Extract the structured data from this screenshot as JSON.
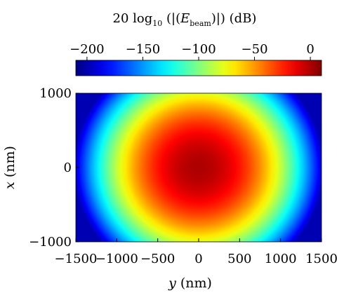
{
  "chart_data": {
    "type": "heatmap",
    "title_parts": {
      "prefix": "20 log",
      "log_subscript": "10",
      "open": " (|(",
      "symbol": "E",
      "symbol_subscript": "beam",
      "close": ")|) (dB)"
    },
    "colorbar": {
      "range": [
        -210,
        10
      ],
      "ticks": [
        -200,
        -150,
        -100,
        -50,
        0
      ],
      "tick_labels": [
        "−200",
        "−150",
        "−100",
        "−50",
        "0"
      ],
      "colormap": "jet"
    },
    "xlabel_var": "y",
    "xlabel_unit": " (nm)",
    "ylabel_var": "x",
    "ylabel_unit": " (nm)",
    "xlim": [
      -1500,
      1500
    ],
    "ylim": [
      -1000,
      1000
    ],
    "x_ticks": [
      -1500,
      -1000,
      -500,
      0,
      500,
      1000,
      1500
    ],
    "x_tick_labels": [
      "−1500",
      "−1000",
      "−500",
      "0",
      "500",
      "1000",
      "1500"
    ],
    "y_ticks": [
      -1000,
      0,
      1000
    ],
    "y_tick_labels": [
      "−1000",
      "0",
      "1000"
    ],
    "field": {
      "center": [
        0,
        0
      ],
      "peak_db": 0,
      "edge_db_at_y_1500": -200,
      "edge_db_at_x_1000": -92
    }
  }
}
